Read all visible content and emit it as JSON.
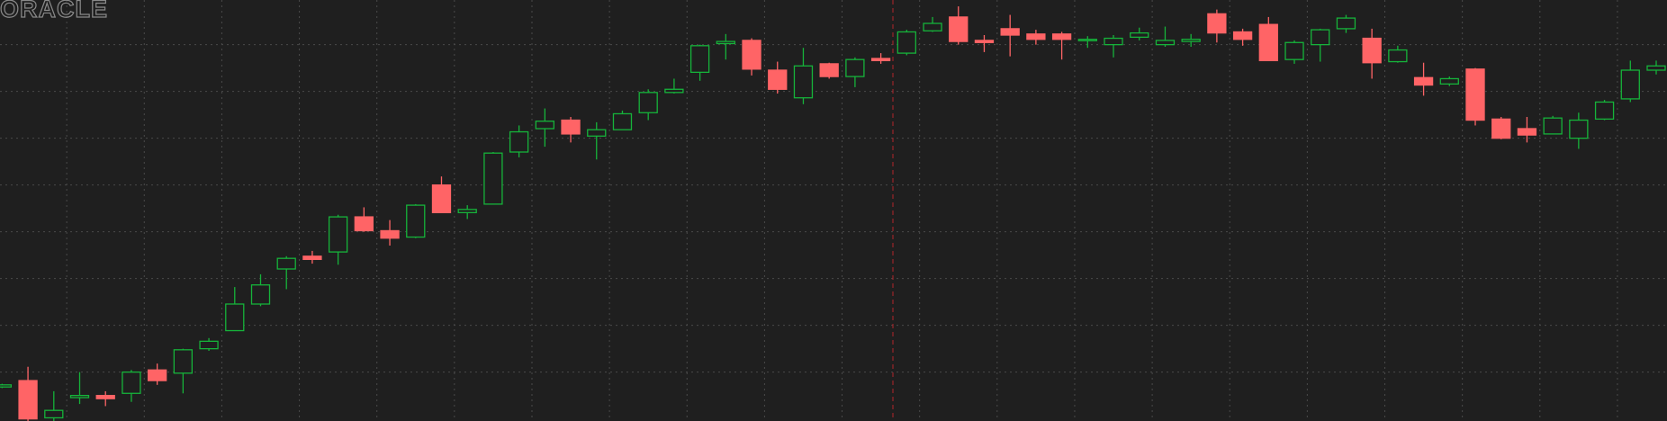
{
  "watermark": "ORACLE",
  "chart_data": {
    "type": "candlestick",
    "up_color": "#16b33a",
    "down_color": "#ff6466",
    "ylim": [
      0,
      396
    ],
    "yticks": [
      46,
      90,
      134,
      178,
      222,
      266,
      310,
      354
    ],
    "grid": true,
    "open": [
      32,
      38,
      3,
      22,
      24,
      26,
      48,
      45,
      68,
      85,
      110,
      143,
      155,
      159,
      192,
      179,
      173,
      222,
      196,
      204,
      253,
      275,
      283,
      268,
      274,
      290,
      309,
      328,
      355,
      358,
      330,
      304,
      336,
      324,
      341,
      346,
      367,
      380,
      358,
      369,
      364,
      364,
      358,
      354,
      361,
      354,
      357,
      383,
      366,
      373,
      340,
      354,
      369,
      360,
      338,
      323,
      317,
      331,
      284,
      275,
      270,
      266,
      284,
      303,
      330
    ],
    "high": [
      35,
      51,
      28,
      46,
      28,
      48,
      54,
      68,
      78,
      126,
      138,
      155,
      160,
      194,
      201,
      189,
      204,
      230,
      203,
      253,
      278,
      294,
      286,
      281,
      292,
      312,
      322,
      354,
      364,
      360,
      338,
      351,
      337,
      342,
      346,
      368,
      380,
      390,
      363,
      382,
      368,
      366,
      362,
      363,
      370,
      371,
      364,
      387,
      369,
      380,
      358,
      369,
      382,
      369,
      353,
      337,
      324,
      332,
      286,
      286,
      287,
      290,
      302,
      339,
      339
    ],
    "low": [
      31,
      0,
      0,
      16,
      14,
      18,
      34,
      26,
      66,
      85,
      108,
      124,
      148,
      147,
      178,
      165,
      172,
      196,
      190,
      204,
      248,
      258,
      262,
      246,
      274,
      283,
      308,
      320,
      340,
      325,
      308,
      298,
      322,
      314,
      336,
      344,
      366,
      354,
      347,
      343,
      354,
      340,
      351,
      342,
      358,
      352,
      352,
      356,
      353,
      339,
      336,
      338,
      365,
      322,
      337,
      306,
      315,
      278,
      265,
      262,
      270,
      256,
      283,
      300,
      326
    ],
    "close": [
      34,
      2,
      10,
      24,
      21,
      46,
      38,
      67,
      75,
      110,
      128,
      153,
      152,
      192,
      179,
      172,
      203,
      196,
      199,
      252,
      272,
      282,
      270,
      274,
      289,
      309,
      312,
      353,
      357,
      331,
      312,
      334,
      324,
      340,
      339,
      366,
      374,
      357,
      356,
      363,
      359,
      359,
      359,
      360,
      365,
      358,
      359,
      365,
      359,
      339,
      356,
      368,
      379,
      337,
      349,
      316,
      322,
      283,
      266,
      269,
      285,
      283,
      300,
      330,
      334
    ]
  }
}
